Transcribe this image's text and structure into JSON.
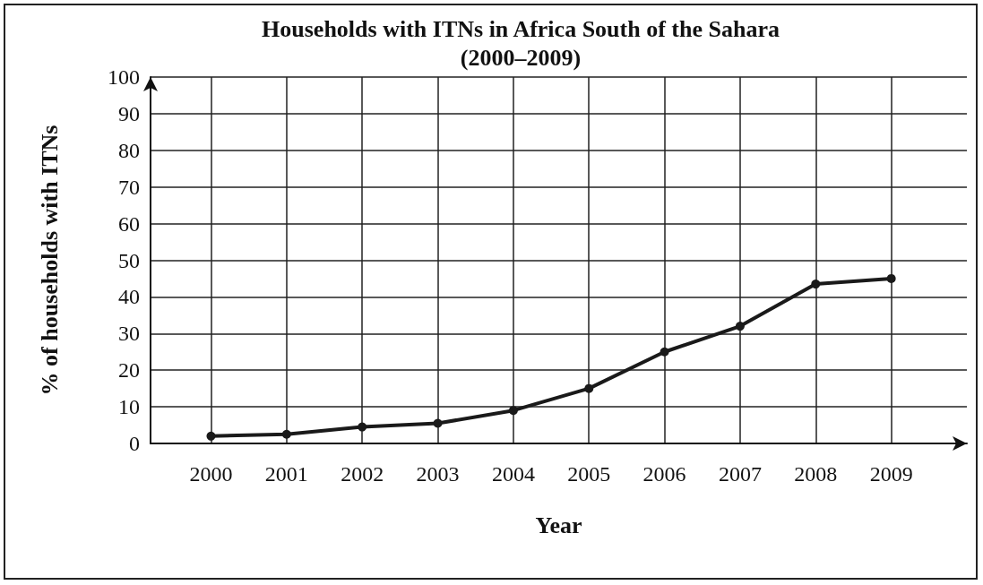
{
  "chart_data": {
    "type": "line",
    "title": "Households with ITNs in Africa South of the Sahara",
    "subtitle": "(2000–2009)",
    "xlabel": "Year",
    "ylabel": "% of households with ITNs",
    "x": [
      2000,
      2001,
      2002,
      2003,
      2004,
      2005,
      2006,
      2007,
      2008,
      2009
    ],
    "values": [
      2,
      2.5,
      4.5,
      5.5,
      9,
      15,
      25,
      32,
      43.5,
      45
    ],
    "color": "#1a1a1a",
    "xlim": [
      1999.2,
      2010
    ],
    "xticks": [
      2000,
      2001,
      2002,
      2003,
      2004,
      2005,
      2006,
      2007,
      2008,
      2009
    ],
    "ylim": [
      0,
      100
    ],
    "yticks": [
      0,
      10,
      20,
      30,
      40,
      50,
      60,
      70,
      80,
      90,
      100
    ],
    "grid": true,
    "marker": "circle",
    "line_style": "solid"
  }
}
